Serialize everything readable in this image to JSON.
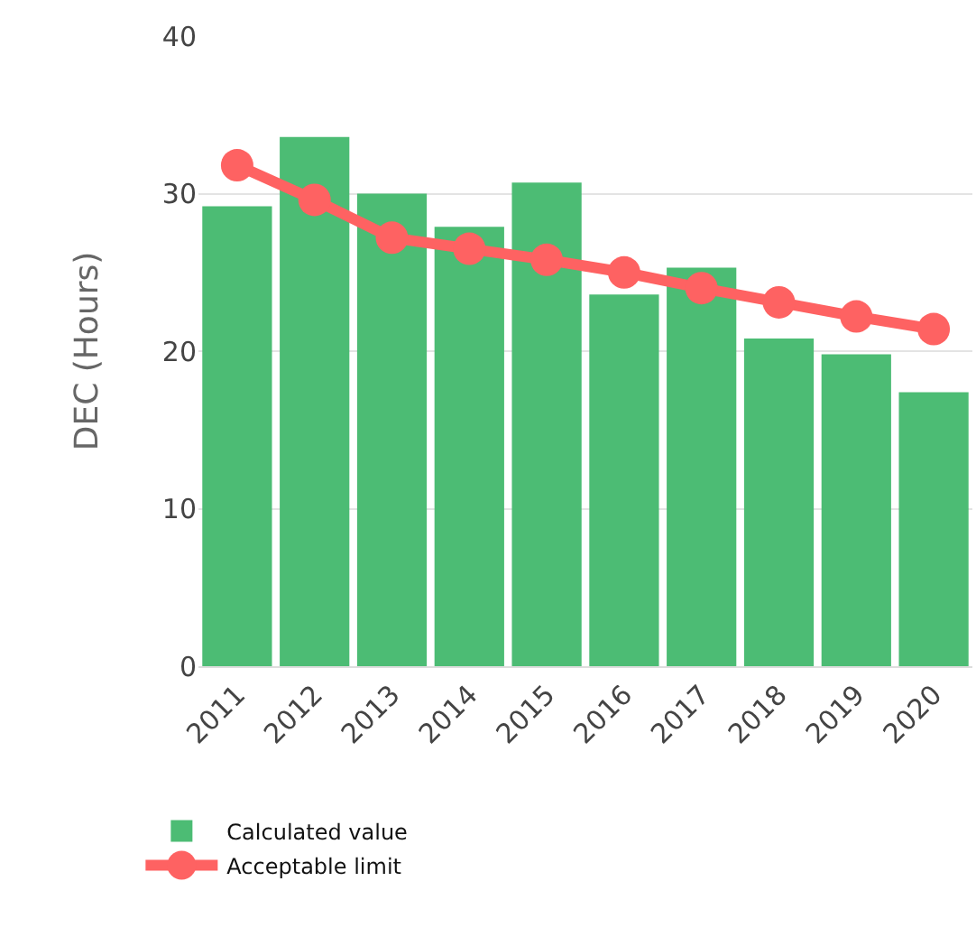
{
  "chart_data": {
    "type": "bar",
    "ylabel": "DEC (Hours)",
    "categories": [
      "2011",
      "2012",
      "2013",
      "2014",
      "2015",
      "2016",
      "2017",
      "2018",
      "2019",
      "2020"
    ],
    "series": [
      {
        "name": "Calculated value",
        "color": "#4cbc74",
        "values": [
          29.2,
          33.6,
          30.0,
          27.9,
          30.7,
          23.6,
          25.3,
          20.8,
          19.8,
          17.4
        ]
      },
      {
        "name": "Acceptable limit",
        "type": "line",
        "color": "#fe6262",
        "marker": "circle",
        "values": [
          31.8,
          29.6,
          27.2,
          26.5,
          25.8,
          25.0,
          24.0,
          23.1,
          22.2,
          21.4
        ]
      }
    ],
    "ylim": [
      0,
      40
    ],
    "yticks": [
      0,
      10,
      20,
      30,
      40
    ],
    "grid": "y",
    "legend": "bottom left"
  }
}
